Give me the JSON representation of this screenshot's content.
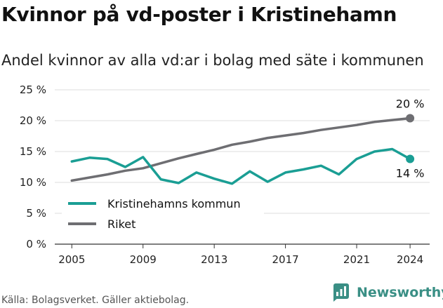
{
  "title": "Kvinnor på vd-poster i Kristinehamn",
  "subtitle": "Andel kvinnor av alla vd:ar i bolag med säte i kommunen",
  "source": "Källa: Bolagsverket. Gäller aktiebolag.",
  "brand": {
    "name": "Newsworthy",
    "icon": "newsworthy-logo-icon",
    "color": "#3a8f85"
  },
  "chart_data": {
    "type": "line",
    "x": [
      2005,
      2006,
      2007,
      2008,
      2009,
      2010,
      2011,
      2012,
      2013,
      2014,
      2015,
      2016,
      2017,
      2018,
      2019,
      2020,
      2021,
      2022,
      2023,
      2024
    ],
    "series": [
      {
        "name": "Kristinehamns kommun",
        "color": "#1a9e94",
        "values": [
          13.4,
          14.0,
          13.8,
          12.5,
          14.1,
          10.5,
          9.9,
          11.6,
          10.6,
          9.8,
          11.8,
          10.1,
          11.6,
          12.1,
          12.7,
          11.3,
          13.8,
          15.0,
          15.4,
          13.8
        ]
      },
      {
        "name": "Riket",
        "color": "#6e6e72",
        "values": [
          10.3,
          10.8,
          11.3,
          11.9,
          12.3,
          13.1,
          13.9,
          14.6,
          15.3,
          16.1,
          16.6,
          17.2,
          17.6,
          18.0,
          18.5,
          18.9,
          19.3,
          19.8,
          20.1,
          20.4
        ]
      }
    ],
    "end_labels": [
      "14 %",
      "20 %"
    ],
    "y_ticks": [
      0,
      5,
      10,
      15,
      20,
      25
    ],
    "y_tick_labels": [
      "0 %",
      "5 %",
      "10 %",
      "15 %",
      "20 %",
      "25 %"
    ],
    "x_ticks": [
      2005,
      2009,
      2013,
      2017,
      2021,
      2024
    ],
    "x_tick_labels": [
      "2005",
      "2009",
      "2013",
      "2017",
      "2021",
      "2024"
    ],
    "ylim": [
      0,
      25
    ],
    "xlim": [
      2005,
      2024
    ],
    "grid": "horizontal",
    "legend_position": "bottom-left"
  }
}
